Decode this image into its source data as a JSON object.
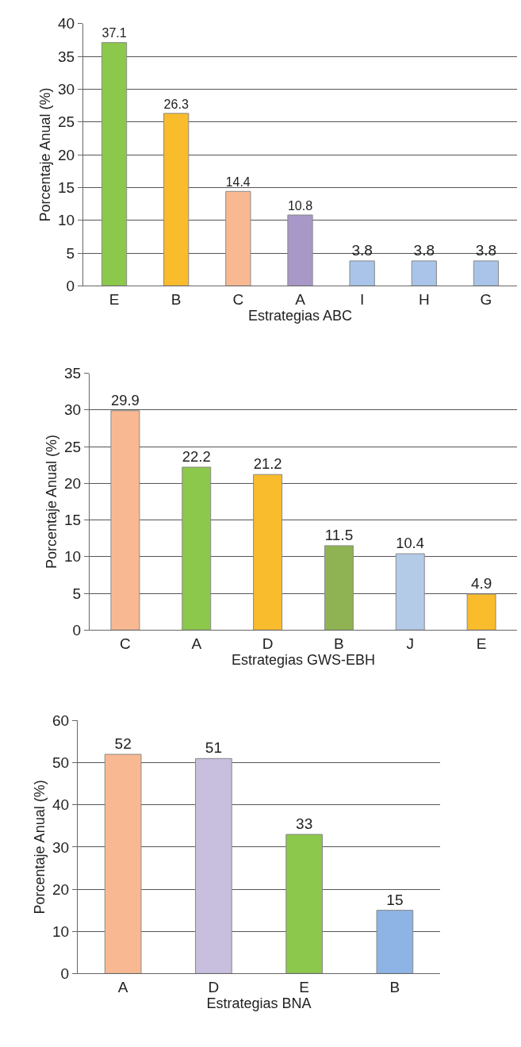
{
  "chart_data": [
    {
      "type": "bar",
      "categories": [
        "E",
        "B",
        "C",
        "A",
        "I",
        "H",
        "G"
      ],
      "values": [
        37.1,
        26.3,
        14.4,
        10.8,
        3.8,
        3.8,
        3.8
      ],
      "colors": [
        "#8cc84b",
        "#f9bc2c",
        "#f8b992",
        "#a898c8",
        "#a9c4e8",
        "#a9c4e8",
        "#a9c4e8"
      ],
      "xlabel": "Estrategias ABC",
      "ylabel": "Porcentaje Anual (%)",
      "ylim": [
        0,
        40
      ],
      "yticks": [
        0,
        5,
        10,
        15,
        20,
        25,
        30,
        35,
        40
      ],
      "grid": "y",
      "data_labels": true
    },
    {
      "type": "bar",
      "categories": [
        "C",
        "A",
        "D",
        "B",
        "J",
        "E"
      ],
      "values": [
        29.9,
        22.2,
        21.2,
        11.5,
        10.4,
        4.9
      ],
      "colors": [
        "#f8b992",
        "#8cc84b",
        "#f9bc2c",
        "#8fb353",
        "#b4cbe8",
        "#f9bc2c"
      ],
      "xlabel": "Estrategias GWS-EBH",
      "ylabel": "Porcentaje Anual (%)",
      "ylim": [
        0,
        35
      ],
      "yticks": [
        0,
        5,
        10,
        15,
        20,
        25,
        30,
        35
      ],
      "grid": "y",
      "data_labels": true
    },
    {
      "type": "bar",
      "categories": [
        "A",
        "D",
        "E",
        "B"
      ],
      "values": [
        52,
        51,
        33,
        15
      ],
      "colors": [
        "#f8b992",
        "#c8bedd",
        "#8cc84b",
        "#8db4e4"
      ],
      "xlabel": "Estrategias BNA",
      "ylabel": "Porcentaje Anual (%)",
      "ylim": [
        0,
        60
      ],
      "yticks": [
        0,
        10,
        20,
        30,
        40,
        50,
        60
      ],
      "grid": "y",
      "data_labels": true
    }
  ]
}
